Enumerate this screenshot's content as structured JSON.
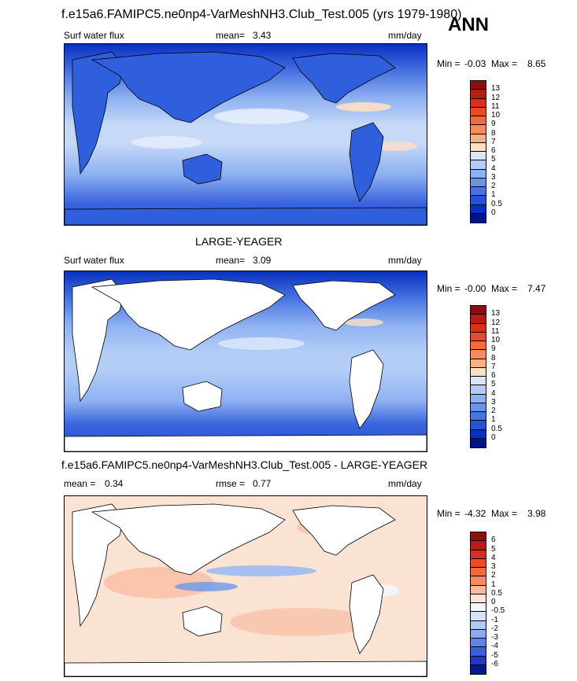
{
  "header": {
    "title": "f.e15a6.FAMIPC5.ne0np4-VarMeshNH3.Club_Test.005 (yrs 1979-1980)",
    "season": "ANN"
  },
  "panels": [
    {
      "variable": "Surf water flux",
      "mean_label": "mean=",
      "mean_value": "3.43",
      "units": "mm/day",
      "min_label": "Min =",
      "min_value": "-0.03",
      "max_label": "Max =",
      "max_value": "8.65"
    },
    {
      "heading": "LARGE-YEAGER",
      "variable": "Surf water flux",
      "mean_label": "mean=",
      "mean_value": "3.09",
      "units": "mm/day",
      "min_label": "Min =",
      "min_value": "-0.00",
      "max_label": "Max =",
      "max_value": "7.47"
    },
    {
      "heading": "f.e15a6.FAMIPC5.ne0np4-VarMeshNH3.Club_Test.005 - LARGE-YEAGER",
      "mean_label": "mean =",
      "mean_value": "0.34",
      "rmse_label": "rmse =",
      "rmse_value": "0.77",
      "units": "mm/day",
      "min_label": "Min =",
      "min_value": "-4.32",
      "max_label": "Max =",
      "max_value": "3.98"
    }
  ],
  "colorbars": {
    "absolute": {
      "labels": [
        "13",
        "12",
        "11",
        "10",
        "9",
        "8",
        "7",
        "6",
        "5",
        "4",
        "3",
        "2",
        "1",
        "0.5",
        "0"
      ],
      "colors": [
        "#8b0f0f",
        "#b71d14",
        "#d7301f",
        "#e84a2c",
        "#f26a3d",
        "#f78c5a",
        "#fbb084",
        "#fde0c5",
        "#d7e6fb",
        "#b3cdf7",
        "#8eb1f1",
        "#6a93ea",
        "#4674e2",
        "#2552d6",
        "#0a2fc0",
        "#00138c"
      ]
    },
    "difference": {
      "labels": [
        "6",
        "5",
        "4",
        "3",
        "2",
        "1",
        "0.5",
        "0",
        "-0.5",
        "-1",
        "-2",
        "-3",
        "-4",
        "-5",
        "-6"
      ],
      "colors": [
        "#8b0f0f",
        "#b71d14",
        "#d7301f",
        "#e84a2c",
        "#f26a3d",
        "#f78c5a",
        "#fbb99a",
        "#fde5d5",
        "#f2f6ff",
        "#d7e3fb",
        "#b3c9f5",
        "#8ba9ee",
        "#5f84e4",
        "#3a5fd8",
        "#1a3bc6",
        "#061a8f"
      ]
    }
  },
  "colors": {
    "ocean_deep": "#2a55d6",
    "ocean_mid": "#6d96ea",
    "ocean_light": "#c6d9f7",
    "ocean_peak": "#fde0c5",
    "land_model": "#2f5fdc",
    "land_obs": "#ffffff",
    "diff_pos": "#f8c2a8",
    "diff_neg": "#9dbaf2",
    "diff_base": "#fbe3d3"
  }
}
